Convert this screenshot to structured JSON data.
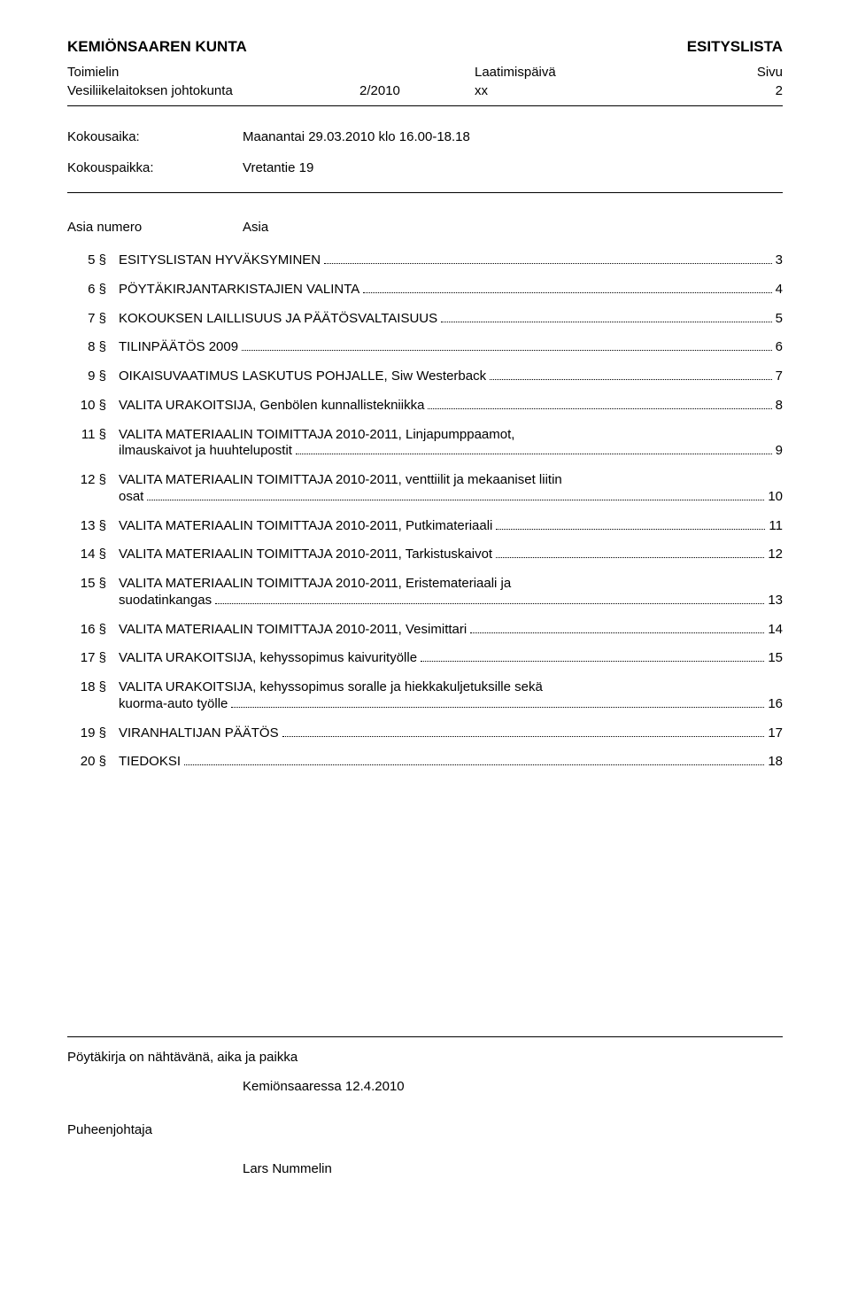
{
  "header": {
    "org": "KEMIÖNSAAREN KUNTA",
    "doc_type": "ESITYSLISTA",
    "row_labels": {
      "organ": "Toimielin",
      "date": "Laatimispäivä",
      "page": "Sivu"
    },
    "organ": "Vesiliikelaitoksen johtokunta",
    "meeting_no": "2/2010",
    "date_value": "xx",
    "page_no": "2"
  },
  "meeting": {
    "time_label": "Kokousaika:",
    "time_value": "Maanantai 29.03.2010 klo 16.00-18.18",
    "place_label": "Kokouspaikka:",
    "place_value": "Vretantie 19"
  },
  "toc": {
    "col1": "Asia numero",
    "col2": "Asia",
    "items": [
      {
        "sec": "5 §",
        "lines": [
          "ESITYSLISTAN HYVÄKSYMINEN"
        ],
        "page": "3"
      },
      {
        "sec": "6 §",
        "lines": [
          "PÖYTÄKIRJANTARKISTAJIEN VALINTA"
        ],
        "page": "4"
      },
      {
        "sec": "7 §",
        "lines": [
          "KOKOUKSEN LAILLISUUS JA PÄÄTÖSVALTAISUUS"
        ],
        "page": "5"
      },
      {
        "sec": "8 §",
        "lines": [
          "TILINPÄÄTÖS 2009"
        ],
        "page": "6"
      },
      {
        "sec": "9 §",
        "lines": [
          "OIKAISUVAATIMUS LASKUTUS POHJALLE, Siw Westerback"
        ],
        "page": "7"
      },
      {
        "sec": "10 §",
        "lines": [
          "VALITA URAKOITSIJA, Genbölen kunnallistekniikka"
        ],
        "page": "8"
      },
      {
        "sec": "11 §",
        "lines": [
          "VALITA MATERIAALIN TOIMITTAJA 2010-2011, Linjapumppaamot,",
          "ilmauskaivot ja huuhtelupostit"
        ],
        "page": "9"
      },
      {
        "sec": "12 §",
        "lines": [
          "VALITA MATERIAALIN TOIMITTAJA 2010-2011, venttiilit ja mekaaniset liitin",
          "osat"
        ],
        "page": "10"
      },
      {
        "sec": "13 §",
        "lines": [
          "VALITA MATERIAALIN TOIMITTAJA 2010-2011, Putkimateriaali"
        ],
        "page": "11"
      },
      {
        "sec": "14 §",
        "lines": [
          "VALITA MATERIAALIN TOIMITTAJA 2010-2011, Tarkistuskaivot"
        ],
        "page": "12"
      },
      {
        "sec": "15 §",
        "lines": [
          "VALITA MATERIAALIN TOIMITTAJA 2010-2011, Eristemateriaali ja",
          "suodatinkangas"
        ],
        "page": "13"
      },
      {
        "sec": "16 §",
        "lines": [
          "VALITA MATERIAALIN TOIMITTAJA 2010-2011, Vesimittari"
        ],
        "page": "14"
      },
      {
        "sec": "17 §",
        "lines": [
          "VALITA URAKOITSIJA, kehyssopimus kaivurityölle"
        ],
        "page": "15"
      },
      {
        "sec": "18 §",
        "lines": [
          "VALITA URAKOITSIJA, kehyssopimus soralle ja hiekkakuljetuksille sekä",
          "kuorma-auto työlle"
        ],
        "page": "16"
      },
      {
        "sec": "19 §",
        "lines": [
          "VIRANHALTIJAN PÄÄTÖS"
        ],
        "page": "17"
      },
      {
        "sec": "20 §",
        "lines": [
          "TIEDOKSI"
        ],
        "page": "18"
      }
    ]
  },
  "footer": {
    "note": "Pöytäkirja on nähtävänä, aika ja paikka",
    "place_date": "Kemiönsaaressa 12.4.2010",
    "chair_label": "Puheenjohtaja",
    "chair_name": "Lars Nummelin"
  }
}
